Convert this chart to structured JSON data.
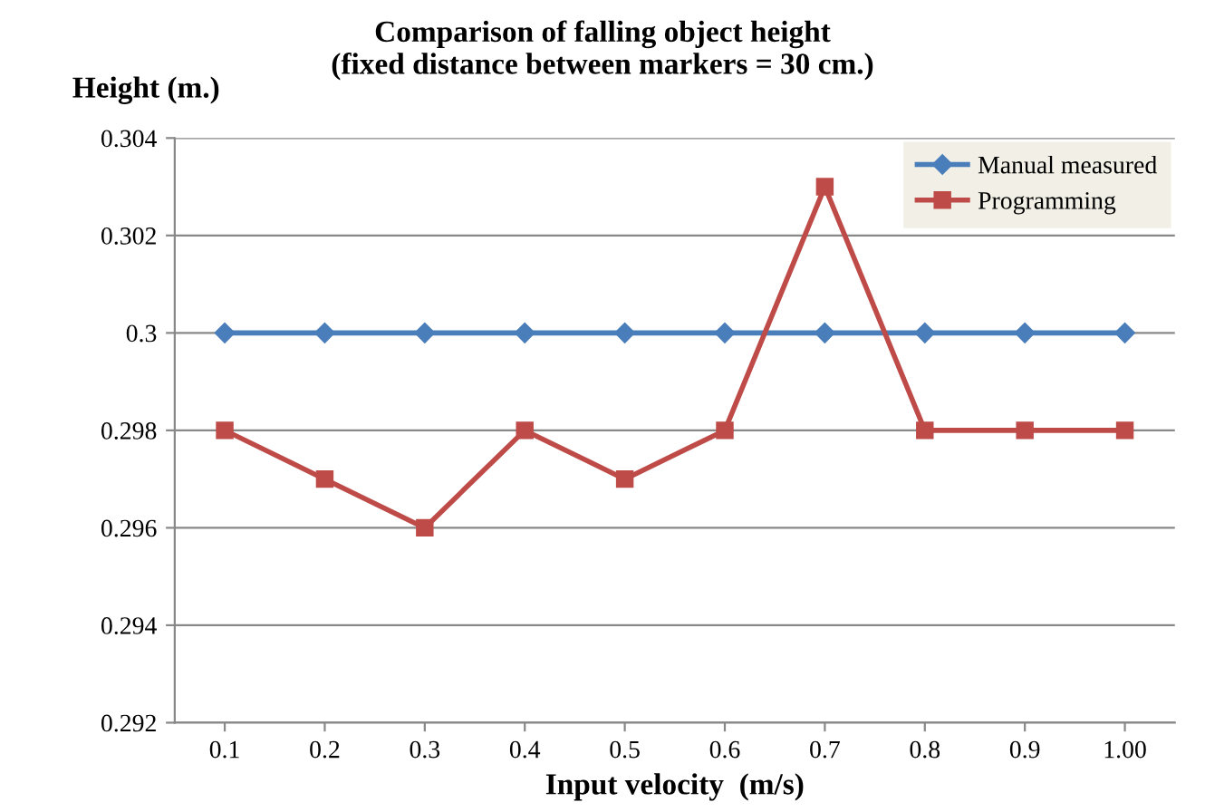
{
  "chart_data": {
    "type": "line",
    "title": "Comparison of falling object height\n(fixed distance between markers = 30 cm.)",
    "xlabel": "Input velocity  (m/s)",
    "ylabel": "Height (m.)",
    "categories": [
      "0.1",
      "0.2",
      "0.3",
      "0.4",
      "0.5",
      "0.6",
      "0.7",
      "0.8",
      "0.9",
      "1.00"
    ],
    "series": [
      {
        "name": "Manual measured",
        "color": "#4a7ebb",
        "marker": "diamond",
        "values": [
          0.3,
          0.3,
          0.3,
          0.3,
          0.3,
          0.3,
          0.3,
          0.3,
          0.3,
          0.3
        ]
      },
      {
        "name": "Programming",
        "color": "#be4b48",
        "marker": "square",
        "values": [
          0.298,
          0.297,
          0.296,
          0.298,
          0.297,
          0.298,
          0.303,
          0.298,
          0.298,
          0.298
        ]
      }
    ],
    "ylim": [
      0.292,
      0.304
    ],
    "yticks": [
      0.292,
      0.294,
      0.296,
      0.298,
      0.3,
      0.302,
      0.304
    ],
    "grid": "y",
    "legend": "top right",
    "line_style": "solid"
  }
}
